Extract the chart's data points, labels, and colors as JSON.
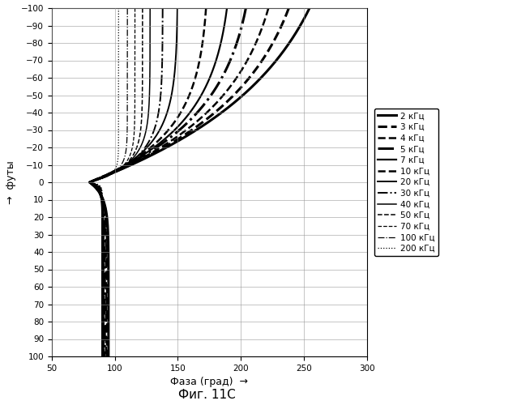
{
  "title": "Фиг. 11С",
  "xlabel": "Фаза (град)",
  "ylabel": "футы",
  "xlim": [
    50,
    300
  ],
  "ylim": [
    100,
    -100
  ],
  "xticks": [
    50,
    100,
    150,
    200,
    250,
    300
  ],
  "yticks": [
    -100,
    -90,
    -80,
    -70,
    -60,
    -50,
    -40,
    -30,
    -20,
    -10,
    0,
    10,
    20,
    30,
    40,
    50,
    60,
    70,
    80,
    90,
    100
  ],
  "freq_labels": [
    "2 кГц",
    "3 кГц",
    "4 кГц",
    "5 кГц",
    "7 кГц",
    "10 кГц",
    "20 кГц",
    "30 кГц",
    "40 кГц",
    "50 кГц",
    "70 кГц",
    "100 кГц",
    "200 кГц"
  ],
  "curve_params": [
    {
      "p0": 80,
      "p_up": 295,
      "p_down": 95,
      "scale_up": 60,
      "scale_down": 8
    },
    {
      "p0": 80,
      "p_up": 265,
      "p_down": 94,
      "scale_up": 52,
      "scale_down": 7
    },
    {
      "p0": 80,
      "p_up": 240,
      "p_down": 93,
      "scale_up": 46,
      "scale_down": 6
    },
    {
      "p0": 80,
      "p_up": 215,
      "p_down": 92,
      "scale_up": 40,
      "scale_down": 5.5
    },
    {
      "p0": 80,
      "p_up": 195,
      "p_down": 91,
      "scale_up": 34,
      "scale_down": 5
    },
    {
      "p0": 80,
      "p_up": 175,
      "p_down": 91,
      "scale_up": 28,
      "scale_down": 4.5
    },
    {
      "p0": 80,
      "p_up": 150,
      "p_down": 90,
      "scale_up": 19,
      "scale_down": 3.5
    },
    {
      "p0": 80,
      "p_up": 138,
      "p_down": 90,
      "scale_up": 14,
      "scale_down": 3
    },
    {
      "p0": 80,
      "p_up": 128,
      "p_down": 90,
      "scale_up": 11,
      "scale_down": 2.5
    },
    {
      "p0": 80,
      "p_up": 122,
      "p_down": 90,
      "scale_up": 9,
      "scale_down": 2
    },
    {
      "p0": 80,
      "p_up": 116,
      "p_down": 90,
      "scale_up": 7,
      "scale_down": 1.8
    },
    {
      "p0": 80,
      "p_up": 110,
      "p_down": 90,
      "scale_up": 5.5,
      "scale_down": 1.5
    },
    {
      "p0": 80,
      "p_up": 103,
      "p_down": 90,
      "scale_up": 3.5,
      "scale_down": 1.2
    }
  ],
  "ls_params": [
    [
      "-",
      2.2
    ],
    [
      "--",
      2.2
    ],
    [
      "--",
      1.8
    ],
    [
      "-.",
      2.2
    ],
    [
      "-",
      1.6
    ],
    [
      "--",
      1.8
    ],
    [
      "-",
      1.4
    ],
    [
      "-.",
      1.4
    ],
    [
      "-",
      1.1
    ],
    [
      "--",
      1.1
    ],
    [
      "--",
      0.9
    ],
    [
      "-.",
      0.9
    ],
    [
      ":",
      0.9
    ]
  ],
  "background_color": "white",
  "grid_color": "#999999"
}
